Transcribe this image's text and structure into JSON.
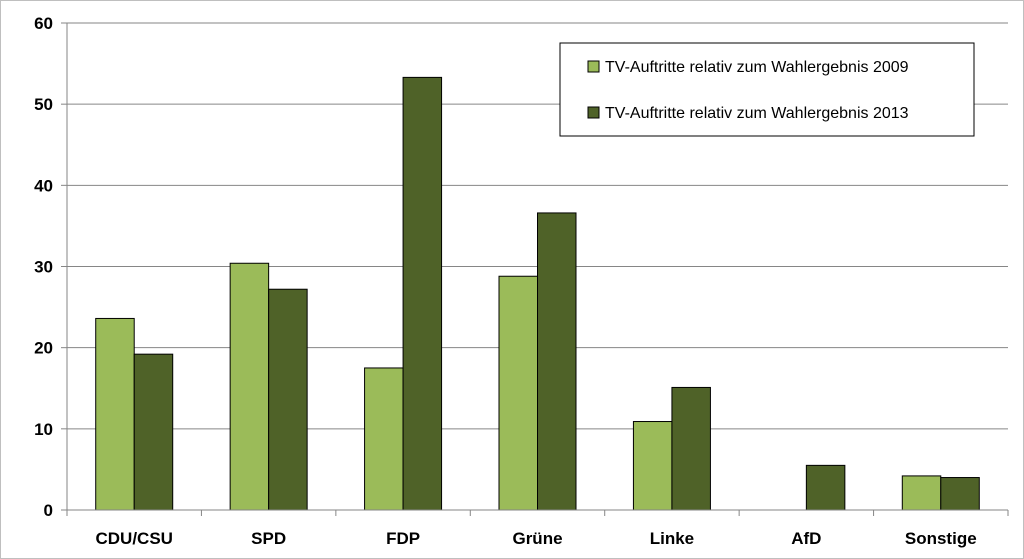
{
  "chart_data": {
    "type": "bar",
    "categories": [
      "CDU/CSU",
      "SPD",
      "FDP",
      "Grüne",
      "Linke",
      "AfD",
      "Sonstige"
    ],
    "series": [
      {
        "name": "TV-Auftritte relativ zum Wahlergebnis 2009",
        "color": "#9bbb59",
        "values": [
          23.6,
          30.4,
          17.5,
          28.8,
          10.9,
          null,
          4.2
        ]
      },
      {
        "name": "TV-Auftritte relativ zum Wahlergebnis 2013",
        "color": "#4f6228",
        "values": [
          19.2,
          27.2,
          53.3,
          36.6,
          15.1,
          5.5,
          4.0
        ]
      }
    ],
    "ylim": [
      0,
      60
    ],
    "yticks": [
      0,
      10,
      20,
      30,
      40,
      50,
      60
    ],
    "grid": true,
    "legend_position": "top-right",
    "title": "",
    "xlabel": "",
    "ylabel": ""
  }
}
